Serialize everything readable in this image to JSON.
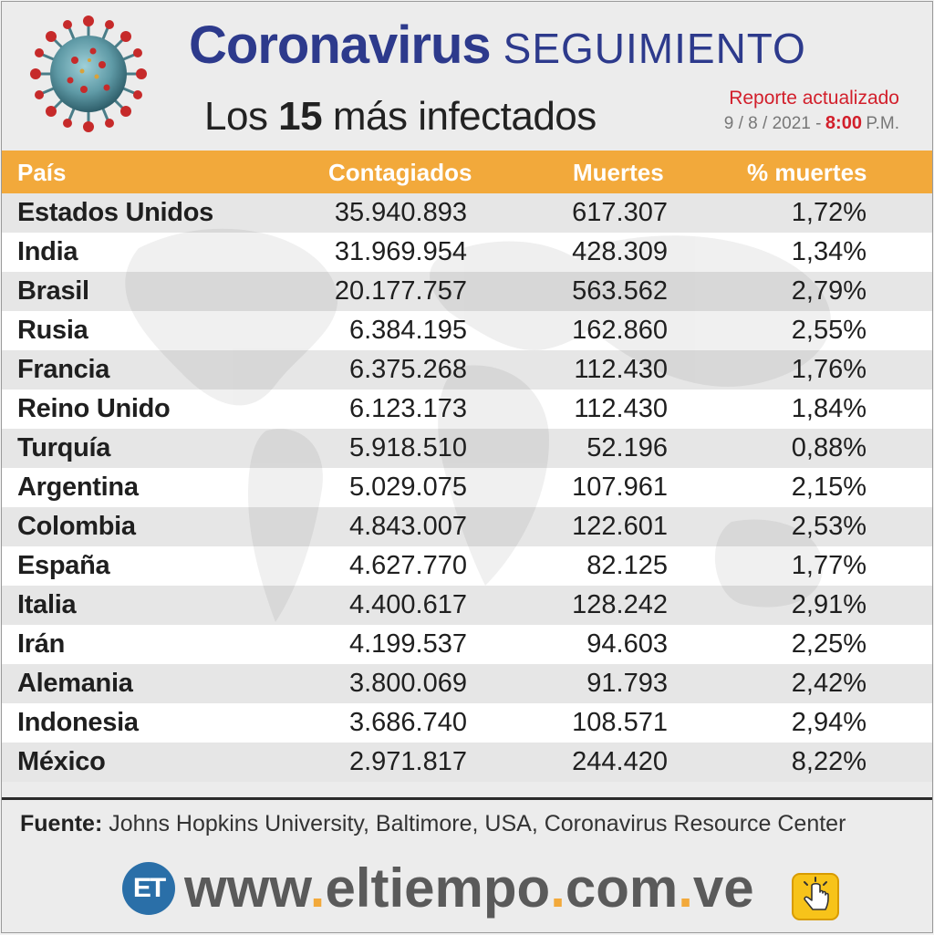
{
  "header": {
    "title_bold": "Coronavirus",
    "title_light": "SEGUIMIENTO",
    "subtitle_pre": "Los ",
    "subtitle_num": "15",
    "subtitle_post": " más infectados",
    "report_label": "Reporte actualizado",
    "report_date": "9 / 8 / 2021 -",
    "report_time": "8:00",
    "report_ampm": "P.M."
  },
  "table": {
    "headers": [
      "País",
      "Contagiados",
      "Muertes",
      "% muertes"
    ],
    "rows": [
      {
        "country": "Estados Unidos",
        "cases": "35.940.893",
        "deaths": "617.307",
        "pct": "1,72%"
      },
      {
        "country": "India",
        "cases": "31.969.954",
        "deaths": "428.309",
        "pct": "1,34%"
      },
      {
        "country": "Brasil",
        "cases": "20.177.757",
        "deaths": "563.562",
        "pct": "2,79%"
      },
      {
        "country": "Rusia",
        "cases": "6.384.195",
        "deaths": "162.860",
        "pct": "2,55%"
      },
      {
        "country": "Francia",
        "cases": "6.375.268",
        "deaths": "112.430",
        "pct": "1,76%"
      },
      {
        "country": "Reino Unido",
        "cases": "6.123.173",
        "deaths": "112.430",
        "pct": "1,84%"
      },
      {
        "country": "Turquía",
        "cases": "5.918.510",
        "deaths": "52.196",
        "pct": "0,88%"
      },
      {
        "country": "Argentina",
        "cases": "5.029.075",
        "deaths": "107.961",
        "pct": "2,15%"
      },
      {
        "country": "Colombia",
        "cases": "4.843.007",
        "deaths": "122.601",
        "pct": "2,53%"
      },
      {
        "country": "España",
        "cases": "4.627.770",
        "deaths": "82.125",
        "pct": "1,77%"
      },
      {
        "country": "Italia",
        "cases": "4.400.617",
        "deaths": "128.242",
        "pct": "2,91%"
      },
      {
        "country": "Irán",
        "cases": "4.199.537",
        "deaths": "94.603",
        "pct": "2,25%"
      },
      {
        "country": "Alemania",
        "cases": "3.800.069",
        "deaths": "91.793",
        "pct": "2,42%"
      },
      {
        "country": "Indonesia",
        "cases": "3.686.740",
        "deaths": "108.571",
        "pct": "2,94%"
      },
      {
        "country": "México",
        "cases": "2.971.817",
        "deaths": "244.420",
        "pct": "8,22%"
      }
    ]
  },
  "source": {
    "label": "Fuente:",
    "text": " Johns Hopkins University, Baltimore, USA, Coronavirus Resource Center"
  },
  "footer": {
    "logo_text": "ET",
    "site_parts": [
      "www",
      ".",
      "eltiempo",
      ".",
      "com",
      ".",
      "ve"
    ]
  },
  "colors": {
    "title_blue": "#2d3a8c",
    "header_orange": "#f2a93b",
    "accent_red": "#d21f2b",
    "logo_blue": "#2a6fa8"
  },
  "icons": [
    "coronavirus-icon",
    "world-map-icon",
    "et-logo-icon",
    "click-hand-icon"
  ]
}
